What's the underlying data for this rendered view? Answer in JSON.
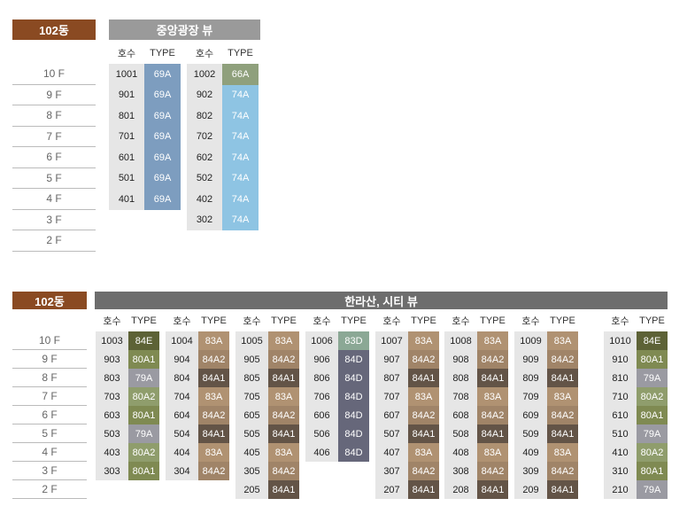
{
  "colors": {
    "dong_badge": "#8a4a22",
    "banner_top": "#9a9a9a",
    "banner_bottom": "#6d6d6d",
    "unit_bg": "#e6e6e6",
    "type_colors": {
      "69A": "#7d9dbf",
      "66A": "#8fa07c",
      "74A": "#8ec4e3",
      "84E": "#5d6236",
      "80A1": "#7f8a52",
      "79A": "#9a9aa2",
      "80A2": "#8f9d6c",
      "83A": "#b09272",
      "84A2": "#a08468",
      "84A1": "#635447",
      "83D": "#8ba895",
      "84D": "#66677a"
    }
  },
  "top": {
    "dong_label": "102동",
    "view_label": "중앙광장 뷰",
    "floors": [
      "10 F",
      "9 F",
      "8 F",
      "7 F",
      "6 F",
      "5 F",
      "4 F",
      "3 F",
      "2 F"
    ],
    "columns": [
      {
        "header_unit": "호수",
        "header_type": "TYPE",
        "units": [
          {
            "unit": "1001",
            "type": "69A"
          },
          {
            "unit": "901",
            "type": "69A"
          },
          {
            "unit": "801",
            "type": "69A"
          },
          {
            "unit": "701",
            "type": "69A"
          },
          {
            "unit": "601",
            "type": "69A"
          },
          {
            "unit": "501",
            "type": "69A"
          },
          {
            "unit": "401",
            "type": "69A"
          }
        ]
      },
      {
        "header_unit": "호수",
        "header_type": "TYPE",
        "units": [
          {
            "unit": "1002",
            "type": "66A"
          },
          {
            "unit": "902",
            "type": "74A"
          },
          {
            "unit": "802",
            "type": "74A"
          },
          {
            "unit": "702",
            "type": "74A"
          },
          {
            "unit": "602",
            "type": "74A"
          },
          {
            "unit": "502",
            "type": "74A"
          },
          {
            "unit": "402",
            "type": "74A"
          },
          {
            "unit": "302",
            "type": "74A"
          }
        ]
      }
    ]
  },
  "bottom": {
    "dong_label": "102동",
    "view_label": "한라산, 시티 뷰",
    "floors": [
      "10 F",
      "9 F",
      "8 F",
      "7 F",
      "6 F",
      "5 F",
      "4 F",
      "3 F",
      "2 F"
    ],
    "columns": [
      {
        "header_unit": "호수",
        "header_type": "TYPE",
        "units": [
          {
            "unit": "1003",
            "type": "84E"
          },
          {
            "unit": "903",
            "type": "80A1"
          },
          {
            "unit": "803",
            "type": "79A"
          },
          {
            "unit": "703",
            "type": "80A2"
          },
          {
            "unit": "603",
            "type": "80A1"
          },
          {
            "unit": "503",
            "type": "79A"
          },
          {
            "unit": "403",
            "type": "80A2"
          },
          {
            "unit": "303",
            "type": "80A1"
          }
        ]
      },
      {
        "header_unit": "호수",
        "header_type": "TYPE",
        "units": [
          {
            "unit": "1004",
            "type": "83A"
          },
          {
            "unit": "904",
            "type": "84A2"
          },
          {
            "unit": "804",
            "type": "84A1"
          },
          {
            "unit": "704",
            "type": "83A"
          },
          {
            "unit": "604",
            "type": "84A2"
          },
          {
            "unit": "504",
            "type": "84A1"
          },
          {
            "unit": "404",
            "type": "83A"
          },
          {
            "unit": "304",
            "type": "84A2"
          }
        ]
      },
      {
        "header_unit": "호수",
        "header_type": "TYPE",
        "units": [
          {
            "unit": "1005",
            "type": "83A"
          },
          {
            "unit": "905",
            "type": "84A2"
          },
          {
            "unit": "805",
            "type": "84A1"
          },
          {
            "unit": "705",
            "type": "83A"
          },
          {
            "unit": "605",
            "type": "84A2"
          },
          {
            "unit": "505",
            "type": "84A1"
          },
          {
            "unit": "405",
            "type": "83A"
          },
          {
            "unit": "305",
            "type": "84A2"
          },
          {
            "unit": "205",
            "type": "84A1"
          }
        ]
      },
      {
        "header_unit": "호수",
        "header_type": "TYPE",
        "units": [
          {
            "unit": "1006",
            "type": "83D"
          },
          {
            "unit": "906",
            "type": "84D"
          },
          {
            "unit": "806",
            "type": "84D"
          },
          {
            "unit": "706",
            "type": "84D"
          },
          {
            "unit": "606",
            "type": "84D"
          },
          {
            "unit": "506",
            "type": "84D"
          },
          {
            "unit": "406",
            "type": "84D"
          }
        ]
      },
      {
        "header_unit": "호수",
        "header_type": "TYPE",
        "units": [
          {
            "unit": "1007",
            "type": "83A"
          },
          {
            "unit": "907",
            "type": "84A2"
          },
          {
            "unit": "807",
            "type": "84A1"
          },
          {
            "unit": "707",
            "type": "83A"
          },
          {
            "unit": "607",
            "type": "84A2"
          },
          {
            "unit": "507",
            "type": "84A1"
          },
          {
            "unit": "407",
            "type": "83A"
          },
          {
            "unit": "307",
            "type": "84A2"
          },
          {
            "unit": "207",
            "type": "84A1"
          }
        ]
      },
      {
        "header_unit": "호수",
        "header_type": "TYPE",
        "units": [
          {
            "unit": "1008",
            "type": "83A"
          },
          {
            "unit": "908",
            "type": "84A2"
          },
          {
            "unit": "808",
            "type": "84A1"
          },
          {
            "unit": "708",
            "type": "83A"
          },
          {
            "unit": "608",
            "type": "84A2"
          },
          {
            "unit": "508",
            "type": "84A1"
          },
          {
            "unit": "408",
            "type": "83A"
          },
          {
            "unit": "308",
            "type": "84A2"
          },
          {
            "unit": "208",
            "type": "84A1"
          }
        ]
      },
      {
        "header_unit": "호수",
        "header_type": "TYPE",
        "units": [
          {
            "unit": "1009",
            "type": "83A"
          },
          {
            "unit": "909",
            "type": "84A2"
          },
          {
            "unit": "809",
            "type": "84A1"
          },
          {
            "unit": "709",
            "type": "83A"
          },
          {
            "unit": "609",
            "type": "84A2"
          },
          {
            "unit": "509",
            "type": "84A1"
          },
          {
            "unit": "409",
            "type": "83A"
          },
          {
            "unit": "309",
            "type": "84A2"
          },
          {
            "unit": "209",
            "type": "84A1"
          }
        ]
      },
      {
        "header_unit": "호수",
        "header_type": "TYPE",
        "units": [
          {
            "unit": "1010",
            "type": "84E"
          },
          {
            "unit": "910",
            "type": "80A1"
          },
          {
            "unit": "810",
            "type": "79A"
          },
          {
            "unit": "710",
            "type": "80A2"
          },
          {
            "unit": "610",
            "type": "80A1"
          },
          {
            "unit": "510",
            "type": "79A"
          },
          {
            "unit": "410",
            "type": "80A2"
          },
          {
            "unit": "310",
            "type": "80A1"
          },
          {
            "unit": "210",
            "type": "79A"
          }
        ]
      }
    ]
  }
}
